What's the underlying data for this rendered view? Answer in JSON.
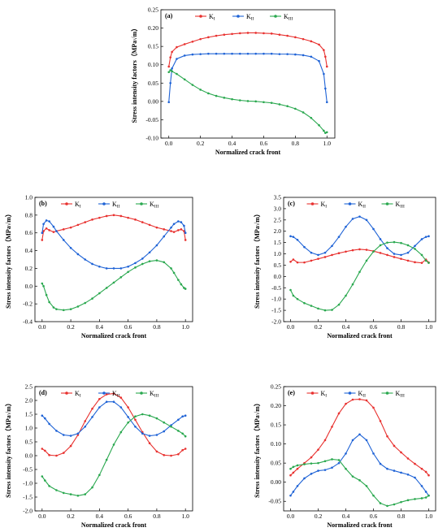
{
  "colors": {
    "KI": "#e8312f",
    "KII": "#1f63d6",
    "KIII": "#2aa84f"
  },
  "chart_data": [
    {
      "type": "line",
      "panel": "(a)",
      "xlabel": "Normalized crack front",
      "ylabel": "Stress intensity factors（MPa√m）",
      "xlim": [
        -0.05,
        1.05
      ],
      "ylim": [
        -0.1,
        0.25
      ],
      "xticks": [
        "0.0",
        "0.2",
        "0.4",
        "0.6",
        "0.8",
        "1.0"
      ],
      "yticks": [
        "-0.10",
        "-0.05",
        "0.00",
        "0.05",
        "0.10",
        "0.15",
        "0.20",
        "0.25"
      ],
      "legend": "top",
      "x": [
        0,
        0.01,
        0.02,
        0.05,
        0.1,
        0.15,
        0.2,
        0.25,
        0.3,
        0.35,
        0.4,
        0.45,
        0.5,
        0.55,
        0.6,
        0.65,
        0.7,
        0.75,
        0.8,
        0.85,
        0.9,
        0.95,
        0.98,
        0.99,
        1.0
      ],
      "series": [
        {
          "name": "K",
          "sub": "I",
          "values": [
            0.095,
            0.12,
            0.135,
            0.148,
            0.156,
            0.163,
            0.17,
            0.175,
            0.179,
            0.182,
            0.184,
            0.186,
            0.187,
            0.187,
            0.186,
            0.185,
            0.182,
            0.179,
            0.175,
            0.17,
            0.164,
            0.155,
            0.14,
            0.122,
            0.095
          ]
        },
        {
          "name": "K",
          "sub": "II",
          "values": [
            -0.002,
            0.05,
            0.09,
            0.116,
            0.125,
            0.128,
            0.129,
            0.13,
            0.13,
            0.13,
            0.13,
            0.13,
            0.13,
            0.13,
            0.13,
            0.13,
            0.129,
            0.129,
            0.128,
            0.126,
            0.122,
            0.11,
            0.075,
            0.035,
            -0.002
          ]
        },
        {
          "name": "K",
          "sub": "III",
          "values": [
            0.08,
            0.085,
            0.082,
            0.075,
            0.06,
            0.045,
            0.032,
            0.022,
            0.015,
            0.01,
            0.006,
            0.003,
            0.001,
            0.0,
            -0.002,
            -0.004,
            -0.008,
            -0.013,
            -0.02,
            -0.03,
            -0.045,
            -0.065,
            -0.08,
            -0.086,
            -0.084
          ]
        }
      ]
    },
    {
      "type": "line",
      "panel": "(b)",
      "xlabel": "Normalized crack front",
      "ylabel": "Stress intensity factors（MPa√m）",
      "xlim": [
        -0.05,
        1.05
      ],
      "ylim": [
        -0.4,
        1.0
      ],
      "xticks": [
        "0.0",
        "0.2",
        "0.4",
        "0.6",
        "0.8",
        "1.0"
      ],
      "yticks": [
        "-0.4",
        "-0.2",
        "0.0",
        "0.2",
        "0.4",
        "0.6",
        "0.8",
        "1.0"
      ],
      "legend": "top",
      "x": [
        0,
        0.01,
        0.03,
        0.05,
        0.08,
        0.1,
        0.15,
        0.2,
        0.25,
        0.3,
        0.35,
        0.4,
        0.45,
        0.5,
        0.55,
        0.6,
        0.65,
        0.7,
        0.75,
        0.8,
        0.85,
        0.9,
        0.92,
        0.95,
        0.97,
        0.99,
        1.0
      ],
      "series": [
        {
          "name": "K",
          "sub": "I",
          "values": [
            0.52,
            0.62,
            0.65,
            0.63,
            0.61,
            0.62,
            0.64,
            0.66,
            0.69,
            0.72,
            0.75,
            0.77,
            0.79,
            0.8,
            0.79,
            0.77,
            0.75,
            0.72,
            0.69,
            0.66,
            0.64,
            0.62,
            0.61,
            0.63,
            0.64,
            0.62,
            0.52
          ]
        },
        {
          "name": "K",
          "sub": "II",
          "values": [
            0.6,
            0.7,
            0.74,
            0.73,
            0.67,
            0.62,
            0.52,
            0.43,
            0.36,
            0.3,
            0.25,
            0.22,
            0.2,
            0.2,
            0.2,
            0.22,
            0.26,
            0.31,
            0.38,
            0.46,
            0.56,
            0.66,
            0.7,
            0.73,
            0.72,
            0.68,
            0.6
          ]
        },
        {
          "name": "K",
          "sub": "III",
          "values": [
            0.03,
            0.0,
            -0.1,
            -0.18,
            -0.24,
            -0.26,
            -0.27,
            -0.26,
            -0.23,
            -0.19,
            -0.14,
            -0.08,
            -0.02,
            0.04,
            0.1,
            0.16,
            0.21,
            0.25,
            0.28,
            0.29,
            0.27,
            0.2,
            0.15,
            0.07,
            0.02,
            -0.02,
            -0.03
          ]
        }
      ]
    },
    {
      "type": "line",
      "panel": "(c)",
      "xlabel": "Normalized crack front",
      "ylabel": "Stress intensity factors（MPa√m）",
      "xlim": [
        -0.05,
        1.05
      ],
      "ylim": [
        -2.0,
        3.5
      ],
      "xticks": [
        "0.0",
        "0.2",
        "0.4",
        "0.6",
        "0.8",
        "1.0"
      ],
      "yticks": [
        "-2.0",
        "-1.5",
        "-1.0",
        "-0.5",
        "0.0",
        "0.5",
        "1.0",
        "1.5",
        "2.0",
        "2.5",
        "3.0",
        "3.5"
      ],
      "legend": "top",
      "x": [
        0,
        0.02,
        0.05,
        0.1,
        0.15,
        0.2,
        0.25,
        0.3,
        0.35,
        0.4,
        0.45,
        0.5,
        0.55,
        0.6,
        0.65,
        0.7,
        0.75,
        0.8,
        0.85,
        0.9,
        0.95,
        0.98,
        1.0
      ],
      "series": [
        {
          "name": "K",
          "sub": "I",
          "values": [
            0.65,
            0.75,
            0.62,
            0.62,
            0.7,
            0.78,
            0.86,
            0.95,
            1.03,
            1.1,
            1.16,
            1.2,
            1.18,
            1.12,
            1.04,
            0.95,
            0.86,
            0.78,
            0.7,
            0.63,
            0.6,
            0.75,
            0.62
          ]
        },
        {
          "name": "K",
          "sub": "II",
          "values": [
            1.78,
            1.75,
            1.62,
            1.3,
            1.05,
            0.95,
            1.05,
            1.35,
            1.75,
            2.2,
            2.55,
            2.65,
            2.5,
            2.1,
            1.65,
            1.25,
            1.0,
            0.95,
            1.05,
            1.35,
            1.65,
            1.75,
            1.78
          ]
        },
        {
          "name": "K",
          "sub": "III",
          "values": [
            -0.6,
            -0.85,
            -1.0,
            -1.18,
            -1.3,
            -1.42,
            -1.5,
            -1.48,
            -1.25,
            -0.85,
            -0.35,
            0.2,
            0.7,
            1.1,
            1.38,
            1.5,
            1.52,
            1.48,
            1.38,
            1.22,
            0.95,
            0.7,
            0.6
          ]
        }
      ]
    },
    {
      "type": "line",
      "panel": "(d)",
      "xlabel": "Normalized crack front",
      "ylabel": "Stress intensity factors（MPa√m）",
      "xlim": [
        -0.05,
        1.05
      ],
      "ylim": [
        -2.0,
        2.5
      ],
      "xticks": [
        "0.0",
        "0.2",
        "0.4",
        "0.6",
        "0.8",
        "1.0"
      ],
      "yticks": [
        "-2.0",
        "-1.5",
        "-1.0",
        "-0.5",
        "0.0",
        "0.5",
        "1.0",
        "1.5",
        "2.0",
        "2.5"
      ],
      "legend": "top",
      "x": [
        0,
        0.02,
        0.05,
        0.1,
        0.15,
        0.2,
        0.25,
        0.3,
        0.35,
        0.4,
        0.45,
        0.5,
        0.55,
        0.6,
        0.65,
        0.7,
        0.75,
        0.8,
        0.85,
        0.9,
        0.95,
        0.98,
        1.0
      ],
      "series": [
        {
          "name": "K",
          "sub": "I",
          "values": [
            0.25,
            0.18,
            0.02,
            0.0,
            0.1,
            0.35,
            0.75,
            1.25,
            1.7,
            2.05,
            2.22,
            2.25,
            2.1,
            1.75,
            1.3,
            0.85,
            0.45,
            0.15,
            0.02,
            0.0,
            0.05,
            0.2,
            0.25
          ]
        },
        {
          "name": "K",
          "sub": "II",
          "values": [
            1.45,
            1.35,
            1.15,
            0.9,
            0.75,
            0.72,
            0.8,
            1.05,
            1.4,
            1.75,
            1.95,
            1.95,
            1.75,
            1.4,
            1.05,
            0.8,
            0.72,
            0.75,
            0.88,
            1.1,
            1.3,
            1.42,
            1.45
          ]
        },
        {
          "name": "K",
          "sub": "III",
          "values": [
            -0.75,
            -0.9,
            -1.1,
            -1.25,
            -1.35,
            -1.4,
            -1.45,
            -1.4,
            -1.15,
            -0.7,
            -0.15,
            0.4,
            0.85,
            1.2,
            1.42,
            1.5,
            1.45,
            1.35,
            1.2,
            1.05,
            0.9,
            0.8,
            0.7
          ]
        }
      ]
    },
    {
      "type": "line",
      "panel": "(e)",
      "xlabel": "Normalized crack front",
      "ylabel": "Stress intensity factors（MPa√m）",
      "xlim": [
        -0.05,
        1.05
      ],
      "ylim": [
        -0.075,
        0.25
      ],
      "xticks": [
        "0.0",
        "0.2",
        "0.4",
        "0.6",
        "0.8",
        "1.0"
      ],
      "yticks": [
        "-0.05",
        "0.00",
        "0.05",
        "0.10",
        "0.15",
        "0.20",
        "0.25"
      ],
      "legend": "top",
      "x": [
        0,
        0.02,
        0.05,
        0.1,
        0.15,
        0.2,
        0.25,
        0.3,
        0.35,
        0.4,
        0.45,
        0.5,
        0.55,
        0.6,
        0.65,
        0.7,
        0.75,
        0.8,
        0.85,
        0.9,
        0.95,
        0.98,
        1.0
      ],
      "series": [
        {
          "name": "K",
          "sub": "I",
          "values": [
            0.018,
            0.025,
            0.035,
            0.05,
            0.065,
            0.085,
            0.11,
            0.145,
            0.18,
            0.205,
            0.216,
            0.217,
            0.214,
            0.195,
            0.16,
            0.12,
            0.095,
            0.078,
            0.062,
            0.048,
            0.035,
            0.027,
            0.018
          ]
        },
        {
          "name": "K",
          "sub": "II",
          "values": [
            -0.035,
            -0.025,
            -0.01,
            0.01,
            0.022,
            0.03,
            0.032,
            0.038,
            0.05,
            0.075,
            0.11,
            0.125,
            0.11,
            0.075,
            0.048,
            0.035,
            0.03,
            0.025,
            0.02,
            0.012,
            -0.01,
            -0.025,
            -0.035
          ]
        },
        {
          "name": "K",
          "sub": "III",
          "values": [
            0.035,
            0.04,
            0.044,
            0.047,
            0.049,
            0.05,
            0.055,
            0.06,
            0.058,
            0.035,
            0.015,
            0.005,
            -0.01,
            -0.035,
            -0.055,
            -0.062,
            -0.058,
            -0.052,
            -0.047,
            -0.044,
            -0.042,
            -0.04,
            -0.035
          ]
        }
      ]
    }
  ]
}
